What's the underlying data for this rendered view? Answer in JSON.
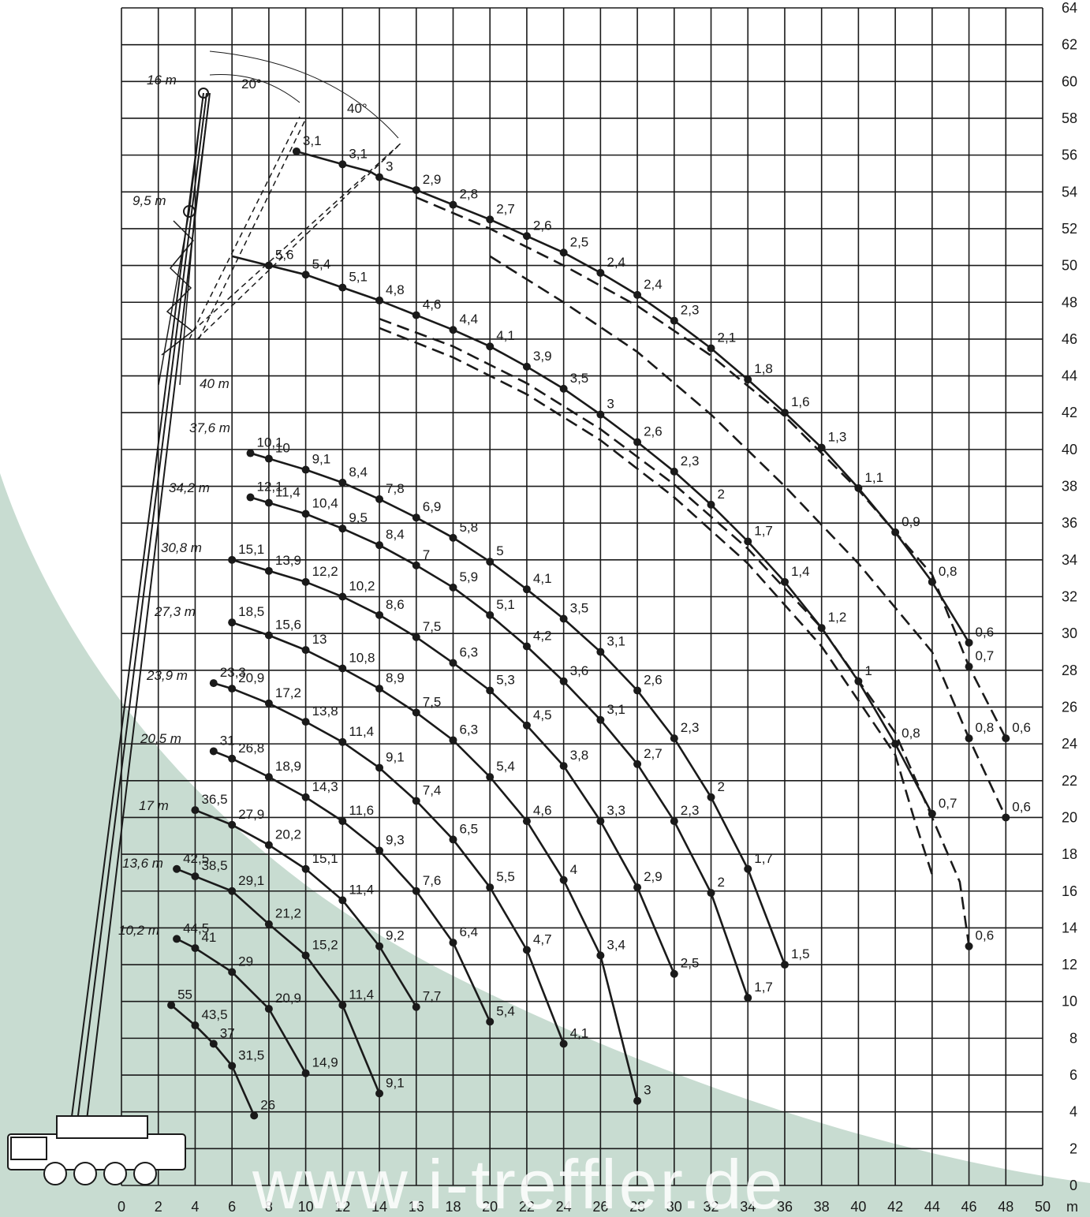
{
  "watermark": "www.i-treffler.de",
  "colors": {
    "background_shape": "#c8dcd1",
    "grid": "#1a1a1a",
    "curve": "#1a1a1a"
  },
  "chart_data": {
    "type": "line",
    "title": "",
    "xlabel": "m",
    "ylabel": "",
    "xlim": [
      0,
      50
    ],
    "ylim": [
      0,
      64
    ],
    "grid": true,
    "x_ticks": [
      0,
      2,
      4,
      6,
      8,
      10,
      12,
      14,
      16,
      18,
      20,
      22,
      24,
      26,
      28,
      30,
      32,
      34,
      36,
      38,
      40,
      42,
      44,
      46,
      48,
      50
    ],
    "y_ticks": [
      0,
      2,
      4,
      6,
      8,
      10,
      12,
      14,
      16,
      18,
      20,
      22,
      24,
      26,
      28,
      30,
      32,
      34,
      36,
      38,
      40,
      42,
      44,
      46,
      48,
      50,
      52,
      54,
      56,
      58,
      60,
      62,
      64
    ],
    "boom_labels": [
      "10,2 m",
      "13,6 m",
      "17 m",
      "20,5 m",
      "23,9 m",
      "27,3 m",
      "30,8 m",
      "34,2 m",
      "37,6 m",
      "40 m",
      "9,5 m",
      "16 m"
    ],
    "angle_labels": [
      "20°",
      "40°"
    ],
    "series": [
      {
        "style": "solid",
        "points": [
          [
            2.7,
            9.8,
            "55"
          ],
          [
            4,
            8.7,
            "43,5"
          ],
          [
            5,
            7.7,
            "37"
          ],
          [
            6,
            6.5,
            "31,5"
          ],
          [
            7.2,
            3.8,
            "26"
          ]
        ]
      },
      {
        "style": "solid",
        "points": [
          [
            3,
            13.4,
            "44,5"
          ],
          [
            4,
            12.9,
            "41"
          ],
          [
            6,
            11.6,
            "29"
          ],
          [
            8,
            9.6,
            "20,9"
          ],
          [
            10,
            6.1,
            "14,9"
          ]
        ]
      },
      {
        "style": "solid",
        "points": [
          [
            3,
            17.2,
            "42,5"
          ],
          [
            4,
            16.8,
            "38,5"
          ],
          [
            6,
            16,
            "29,1"
          ],
          [
            8,
            14.2,
            "21,2"
          ],
          [
            10,
            12.5,
            "15,2"
          ],
          [
            12,
            9.8,
            "11,4"
          ],
          [
            14,
            5,
            "9,1"
          ]
        ]
      },
      {
        "style": "solid",
        "points": [
          [
            4,
            20.4,
            "36,5"
          ],
          [
            6,
            19.6,
            "27,9"
          ],
          [
            8,
            18.5,
            "20,2"
          ],
          [
            10,
            17.2,
            "15,1"
          ],
          [
            12,
            15.5,
            "11,4"
          ],
          [
            14,
            13,
            "9,2"
          ],
          [
            16,
            9.7,
            "7,7"
          ]
        ]
      },
      {
        "style": "solid",
        "points": [
          [
            5,
            23.6,
            "31"
          ],
          [
            6,
            23.2,
            "26,8"
          ],
          [
            8,
            22.2,
            "18,9"
          ],
          [
            10,
            21.1,
            "14,3"
          ],
          [
            12,
            19.8,
            "11,6"
          ],
          [
            14,
            18.2,
            "9,3"
          ],
          [
            16,
            16,
            "7,6"
          ],
          [
            18,
            13.2,
            "6,4"
          ],
          [
            20,
            8.9,
            "5,4"
          ]
        ]
      },
      {
        "style": "solid",
        "points": [
          [
            5,
            27.3,
            "23,3"
          ],
          [
            6,
            27,
            "20,9"
          ],
          [
            8,
            26.2,
            "17,2"
          ],
          [
            10,
            25.2,
            "13,8"
          ],
          [
            12,
            24.1,
            "11,4"
          ],
          [
            14,
            22.7,
            "9,1"
          ],
          [
            16,
            20.9,
            "7,4"
          ],
          [
            18,
            18.8,
            "6,5"
          ],
          [
            20,
            16.2,
            "5,5"
          ],
          [
            22,
            12.8,
            "4,7"
          ],
          [
            24,
            7.7,
            "4,1"
          ]
        ]
      },
      {
        "style": "solid",
        "points": [
          [
            6,
            30.6,
            "18,5"
          ],
          [
            8,
            29.9,
            "15,6"
          ],
          [
            10,
            29.1,
            "13"
          ],
          [
            12,
            28.1,
            "10,8"
          ],
          [
            14,
            27,
            "8,9"
          ],
          [
            16,
            25.7,
            "7,5"
          ],
          [
            18,
            24.2,
            "6,3"
          ],
          [
            20,
            22.2,
            "5,4"
          ],
          [
            22,
            19.8,
            "4,6"
          ],
          [
            24,
            16.6,
            "4"
          ],
          [
            26,
            12.5,
            "3,4"
          ],
          [
            28,
            4.6,
            "3"
          ]
        ]
      },
      {
        "style": "solid",
        "points": [
          [
            6,
            34,
            "15,1"
          ],
          [
            8,
            33.4,
            "13,9"
          ],
          [
            10,
            32.8,
            "12,2"
          ],
          [
            12,
            32,
            "10,2"
          ],
          [
            14,
            31,
            "8,6"
          ],
          [
            16,
            29.8,
            "7,5"
          ],
          [
            18,
            28.4,
            "6,3"
          ],
          [
            20,
            26.9,
            "5,3"
          ],
          [
            22,
            25,
            "4,5"
          ],
          [
            24,
            22.8,
            "3,8"
          ],
          [
            26,
            19.8,
            "3,3"
          ],
          [
            28,
            16.2,
            "2,9"
          ],
          [
            30,
            11.5,
            "2,5"
          ]
        ]
      },
      {
        "style": "solid",
        "points": [
          [
            7,
            37.4,
            "12,1"
          ],
          [
            8,
            37.1,
            "11,4"
          ],
          [
            10,
            36.5,
            "10,4"
          ],
          [
            12,
            35.7,
            "9,5"
          ],
          [
            14,
            34.8,
            "8,4"
          ],
          [
            16,
            33.7,
            "7"
          ],
          [
            18,
            32.5,
            "5,9"
          ],
          [
            20,
            31,
            "5,1"
          ],
          [
            22,
            29.3,
            "4,2"
          ],
          [
            24,
            27.4,
            "3,6"
          ],
          [
            26,
            25.3,
            "3,1"
          ],
          [
            28,
            22.9,
            "2,7"
          ],
          [
            30,
            19.8,
            "2,3"
          ],
          [
            32,
            15.9,
            "2"
          ],
          [
            34,
            10.2,
            "1,7"
          ]
        ]
      },
      {
        "style": "solid",
        "points": [
          [
            7,
            39.8,
            "10,1"
          ],
          [
            8,
            39.5,
            "10"
          ],
          [
            10,
            38.9,
            "9,1"
          ],
          [
            12,
            38.2,
            "8,4"
          ],
          [
            14,
            37.3,
            "7,8"
          ],
          [
            16,
            36.3,
            "6,9"
          ],
          [
            18,
            35.2,
            "5,8"
          ],
          [
            20,
            33.9,
            "5"
          ],
          [
            22,
            32.4,
            "4,1"
          ],
          [
            24,
            30.8,
            "3,5"
          ],
          [
            26,
            29,
            "3,1"
          ],
          [
            28,
            26.9,
            "2,6"
          ],
          [
            30,
            24.3,
            "2,3"
          ],
          [
            32,
            21.1,
            "2"
          ],
          [
            34,
            17.2,
            "1,7"
          ],
          [
            36,
            12,
            "1,5"
          ]
        ]
      },
      {
        "style": "solid",
        "points": [
          [
            6,
            50.5,
            ""
          ],
          [
            8,
            50,
            "5,6"
          ],
          [
            10,
            49.5,
            "5,4"
          ],
          [
            12,
            48.8,
            "5,1"
          ],
          [
            14,
            48.1,
            "4,8"
          ],
          [
            16,
            47.3,
            "4,6"
          ],
          [
            18,
            46.5,
            "4,4"
          ],
          [
            20,
            45.6,
            "4,1"
          ],
          [
            22,
            44.5,
            "3,9"
          ],
          [
            24,
            43.3,
            "3,5"
          ],
          [
            26,
            41.9,
            "3"
          ],
          [
            28,
            40.4,
            "2,6"
          ],
          [
            30,
            38.8,
            "2,3"
          ],
          [
            32,
            37,
            "2"
          ],
          [
            34,
            35,
            "1,7"
          ],
          [
            36,
            32.8,
            "1,4"
          ],
          [
            38,
            30.3,
            "1,2"
          ],
          [
            40,
            27.4,
            "1"
          ],
          [
            42,
            24,
            "0,8"
          ],
          [
            44,
            20.2,
            "0,7"
          ]
        ]
      },
      {
        "style": "solid",
        "points": [
          [
            9.5,
            56.2,
            "3,1"
          ],
          [
            12,
            55.5,
            "3,1"
          ],
          [
            13.5,
            55.1,
            ""
          ],
          [
            14,
            54.8,
            "3"
          ],
          [
            16,
            54.1,
            "2,9"
          ],
          [
            18,
            53.3,
            "2,8"
          ],
          [
            20,
            52.5,
            "2,7"
          ],
          [
            22,
            51.6,
            "2,6"
          ],
          [
            24,
            50.7,
            "2,5"
          ],
          [
            26,
            49.6,
            "2,4"
          ],
          [
            28,
            48.4,
            "2,4"
          ],
          [
            30,
            47,
            "2,3"
          ],
          [
            32,
            45.5,
            "2,1"
          ],
          [
            34,
            43.8,
            "1,8"
          ],
          [
            36,
            42,
            "1,6"
          ],
          [
            38,
            40.1,
            "1,3"
          ],
          [
            40,
            37.9,
            "1,1"
          ],
          [
            42,
            35.5,
            "0,9"
          ],
          [
            44,
            32.8,
            "0,8"
          ],
          [
            46,
            29.5,
            "0,6"
          ]
        ]
      },
      {
        "style": "dashed",
        "points": [
          [
            16,
            53.7,
            ""
          ],
          [
            20,
            52,
            ""
          ],
          [
            24,
            50,
            ""
          ],
          [
            28,
            47.8,
            ""
          ],
          [
            32,
            45.1,
            ""
          ],
          [
            36,
            41.8,
            ""
          ],
          [
            40,
            37.8,
            ""
          ],
          [
            44,
            33.2,
            ""
          ],
          [
            46,
            28.2,
            "0,7"
          ],
          [
            48,
            24.3,
            "0,6"
          ]
        ]
      },
      {
        "style": "dashed",
        "points": [
          [
            20,
            50.5,
            ""
          ],
          [
            24,
            48,
            ""
          ],
          [
            28,
            45.3,
            ""
          ],
          [
            32,
            41.9,
            ""
          ],
          [
            36,
            38,
            ""
          ],
          [
            40,
            33.8,
            ""
          ],
          [
            44,
            29,
            ""
          ],
          [
            46,
            24.3,
            "0,8"
          ],
          [
            48,
            20,
            "0,6"
          ]
        ]
      },
      {
        "style": "dashed",
        "points": [
          [
            14,
            47.1,
            ""
          ],
          [
            18,
            45.6,
            ""
          ],
          [
            22,
            43.6,
            ""
          ],
          [
            26,
            41.1,
            ""
          ],
          [
            30,
            38.1,
            ""
          ],
          [
            34,
            34.6,
            ""
          ],
          [
            38,
            30.3,
            ""
          ],
          [
            42,
            24.6,
            ""
          ],
          [
            44,
            20,
            ""
          ],
          [
            45.5,
            16.5,
            ""
          ],
          [
            46,
            13,
            "0,6"
          ]
        ]
      },
      {
        "style": "dashed",
        "points": [
          [
            14,
            46.6,
            ""
          ],
          [
            18,
            45,
            ""
          ],
          [
            22,
            43,
            ""
          ],
          [
            26,
            40.5,
            ""
          ],
          [
            30,
            37.4,
            ""
          ],
          [
            34,
            33.8,
            ""
          ],
          [
            38,
            29.3,
            ""
          ],
          [
            42,
            23.4,
            ""
          ],
          [
            43,
            20,
            ""
          ],
          [
            44,
            16.9,
            ""
          ]
        ]
      }
    ]
  }
}
